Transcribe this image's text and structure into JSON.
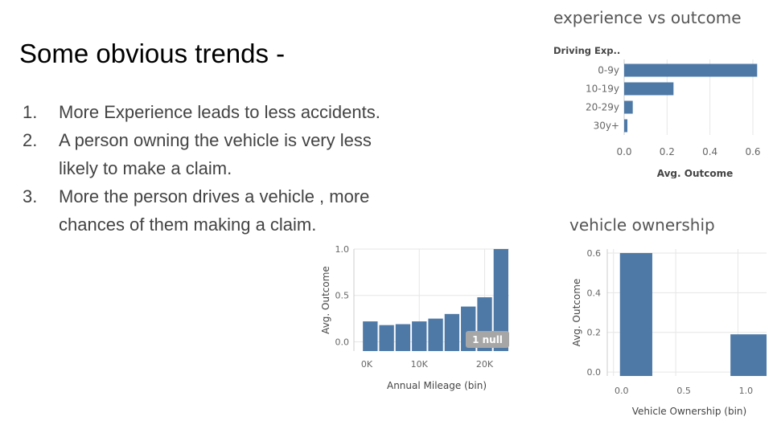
{
  "slide": {
    "title": "Some obvious trends -",
    "trends": [
      {
        "num": "1.",
        "lines": [
          "More Experience leads to less accidents."
        ]
      },
      {
        "num": "2.",
        "lines": [
          "A person owning the vehicle is very less",
          "likely to make a claim."
        ]
      },
      {
        "num": "3.",
        "lines": [
          "More the person drives a vehicle , more",
          "chances of them making a claim."
        ]
      }
    ]
  },
  "colors": {
    "bar": "#4e79a7",
    "gridline": "#e6e6e6",
    "axis_text": "#666666",
    "null_badge": "#a6a6a6"
  },
  "chart_data": [
    {
      "id": "experience",
      "type": "bar",
      "orientation": "horizontal",
      "title": "experience vs outcome",
      "category_header": "Driving Exp..",
      "categories": [
        "0-9y",
        "10-19y",
        "20-29y",
        "30y+"
      ],
      "values": [
        0.62,
        0.23,
        0.04,
        0.015
      ],
      "xlabel": "Avg. Outcome",
      "xlim": [
        0,
        0.63
      ],
      "xticks": [
        "0.0",
        "0.2",
        "0.4",
        "0.6"
      ],
      "xtick_values": [
        0,
        0.2,
        0.4,
        0.6
      ],
      "grid": true
    },
    {
      "id": "mileage",
      "type": "bar",
      "title": "",
      "x_bins": [
        2500,
        5000,
        7500,
        10000,
        12500,
        15000,
        17500,
        20000,
        22500
      ],
      "bin_width": 2500,
      "values": [
        0.22,
        0.18,
        0.19,
        0.22,
        0.25,
        0.3,
        0.38,
        0.48,
        1.0
      ],
      "xlabel": "Annual Mileage (bin)",
      "ylabel": "Avg. Outcome",
      "xlim": [
        0,
        23750
      ],
      "ylim": [
        -0.1,
        1.0
      ],
      "xticks": [
        "0K",
        "10K",
        "20K"
      ],
      "xtick_values": [
        0,
        10000,
        20000
      ],
      "yticks": [
        "0.0",
        "0.5",
        "1.0"
      ],
      "ytick_values": [
        0,
        0.5,
        1.0
      ],
      "annotation": "1 null",
      "grid": true
    },
    {
      "id": "ownership",
      "type": "bar",
      "title": "vehicle ownership",
      "x": [
        0,
        1
      ],
      "values": [
        0.6,
        0.19
      ],
      "xlabel": "Vehicle Ownership (bin)",
      "ylabel": "Avg. Outcome",
      "xlim": [
        -0.05,
        1.23
      ],
      "ylim": [
        -0.02,
        0.62
      ],
      "xticks": [
        "0.0",
        "0.5",
        "1.0"
      ],
      "xtick_values": [
        0,
        0.5,
        1.0
      ],
      "yticks": [
        "0.0",
        "0.2",
        "0.4",
        "0.6"
      ],
      "ytick_values": [
        0,
        0.2,
        0.4,
        0.6
      ],
      "grid": true
    }
  ]
}
